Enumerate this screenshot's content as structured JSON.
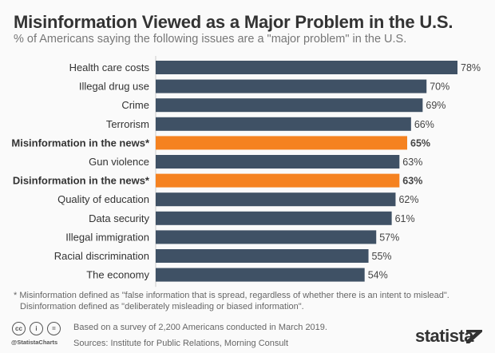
{
  "title": "Misinformation Viewed as a Major Problem in the U.S.",
  "subtitle": "% of Americans saying the following issues are a \"major problem\" in the U.S.",
  "colors": {
    "bar": "#3f5165",
    "highlight": "#f58220"
  },
  "chart_data": {
    "type": "bar",
    "orientation": "horizontal",
    "categories": [
      "Health care costs",
      "Illegal drug use",
      "Crime",
      "Terrorism",
      "Misinformation in the news*",
      "Gun violence",
      "Disinformation in the news*",
      "Quality of education",
      "Data security",
      "Illegal immigration",
      "Racial discrimination",
      "The economy"
    ],
    "values": [
      78,
      70,
      69,
      66,
      65,
      63,
      63,
      62,
      61,
      57,
      55,
      54
    ],
    "highlighted": [
      false,
      false,
      false,
      false,
      true,
      false,
      true,
      false,
      false,
      false,
      false,
      false
    ],
    "unit": "%",
    "xlim": [
      0,
      78
    ],
    "grid": false
  },
  "footnote": [
    "* Misinformation defined as \"false information that is spread, regardless of whether there is an intent to mislead\".",
    "Disinformation defined as \"deliberately misleading or biased information\"."
  ],
  "footer": {
    "survey": "Based on a survey of 2,200 Americans conducted in March 2019.",
    "sources": "Sources: Institute for Public Relations, Morning Consult",
    "handle": "@StatistaCharts",
    "logo": "statista",
    "cc_icons": [
      "cc",
      "by",
      "nd"
    ]
  }
}
